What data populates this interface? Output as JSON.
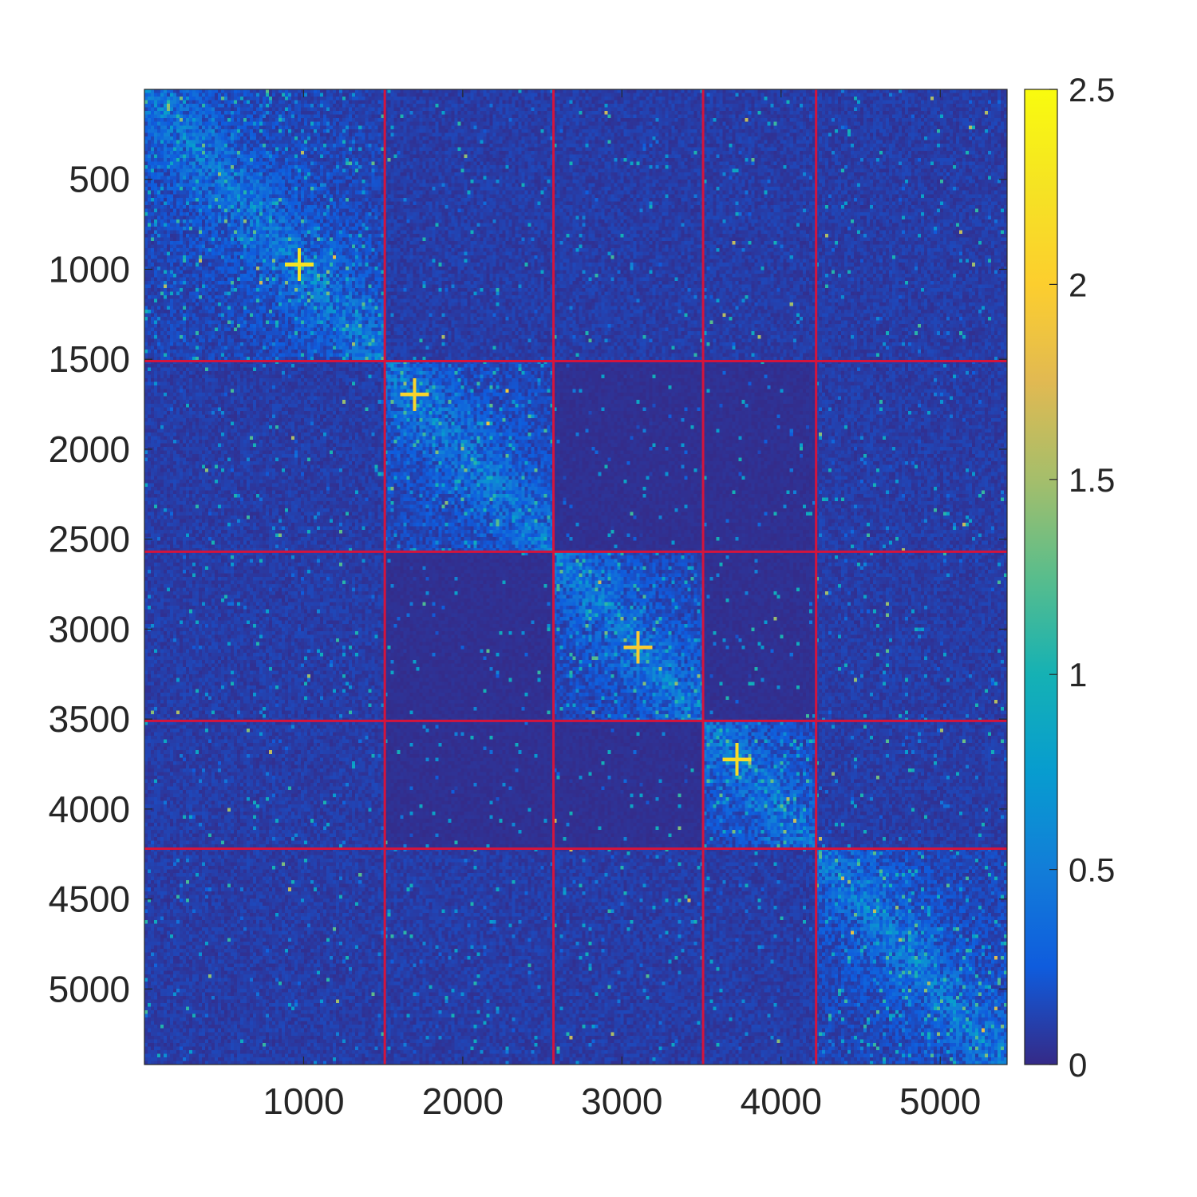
{
  "chart_data": {
    "type": "heatmap",
    "title": "",
    "xlabel": "",
    "ylabel": "",
    "matrix_size": 5420,
    "x_ticks": [
      1000,
      2000,
      3000,
      4000,
      5000
    ],
    "x_tick_labels": [
      "1000",
      "2000",
      "3000",
      "4000",
      "5000"
    ],
    "y_ticks": [
      500,
      1000,
      1500,
      2000,
      2500,
      3000,
      3500,
      4000,
      4500,
      5000
    ],
    "y_tick_labels": [
      "500",
      "1000",
      "1500",
      "2000",
      "2500",
      "3000",
      "3500",
      "4000",
      "4500",
      "5000"
    ],
    "xlim": [
      0,
      5420
    ],
    "ylim": [
      0,
      5420
    ],
    "y_reversed": true,
    "colormap": "parula",
    "clim": [
      0,
      2.5
    ],
    "colorbar_ticks": [
      0,
      0.5,
      1,
      1.5,
      2,
      2.5
    ],
    "colorbar_tick_labels": [
      "0",
      "0.5",
      "1",
      "1.5",
      "2",
      "2.5"
    ],
    "block_boundaries": [
      1510,
      2570,
      3510,
      4220
    ],
    "boundary_color": "#d4143c",
    "blocks": [
      {
        "start": 0,
        "end": 1510,
        "intensity": "high"
      },
      {
        "start": 1510,
        "end": 2570,
        "intensity": "high"
      },
      {
        "start": 2570,
        "end": 3510,
        "intensity": "high"
      },
      {
        "start": 3510,
        "end": 4220,
        "intensity": "high"
      },
      {
        "start": 4220,
        "end": 5420,
        "intensity": "medium"
      }
    ],
    "hotspots": [
      {
        "x": 970,
        "y": 970,
        "value": 2.5
      },
      {
        "x": 1700,
        "y": 1700,
        "value": 2.3
      },
      {
        "x": 3100,
        "y": 3100,
        "value": 2.2
      },
      {
        "x": 3720,
        "y": 3720,
        "value": 2.4
      }
    ]
  }
}
